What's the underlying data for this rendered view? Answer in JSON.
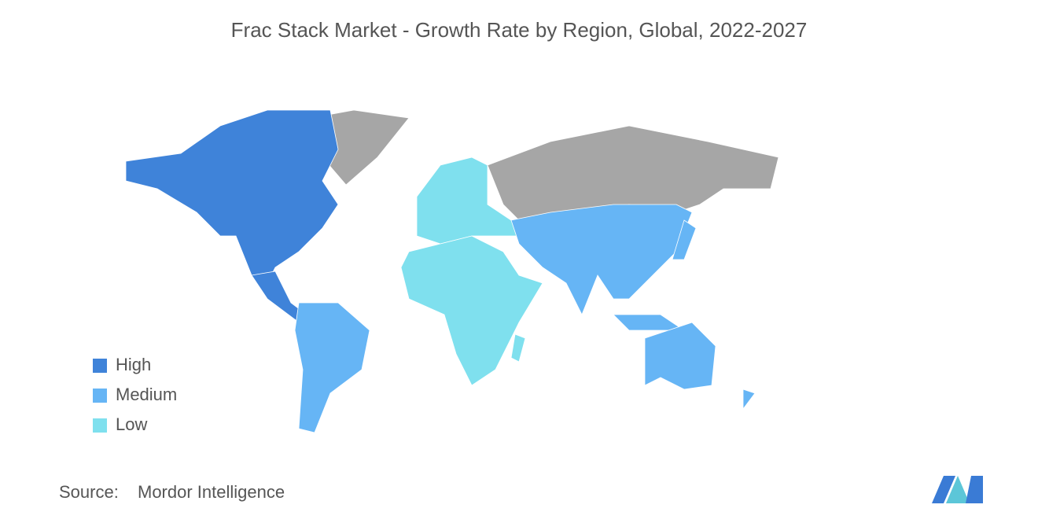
{
  "header": {
    "title": "Frac Stack Market - Growth Rate by Region, Global, 2022-2027"
  },
  "legend": [
    {
      "label": "High",
      "color": "#3f83d9"
    },
    {
      "label": "Medium",
      "color": "#66b5f5"
    },
    {
      "label": "Low",
      "color": "#7fe0ee"
    }
  ],
  "source": {
    "label": "Source:",
    "text": "Mordor Intelligence"
  }
}
